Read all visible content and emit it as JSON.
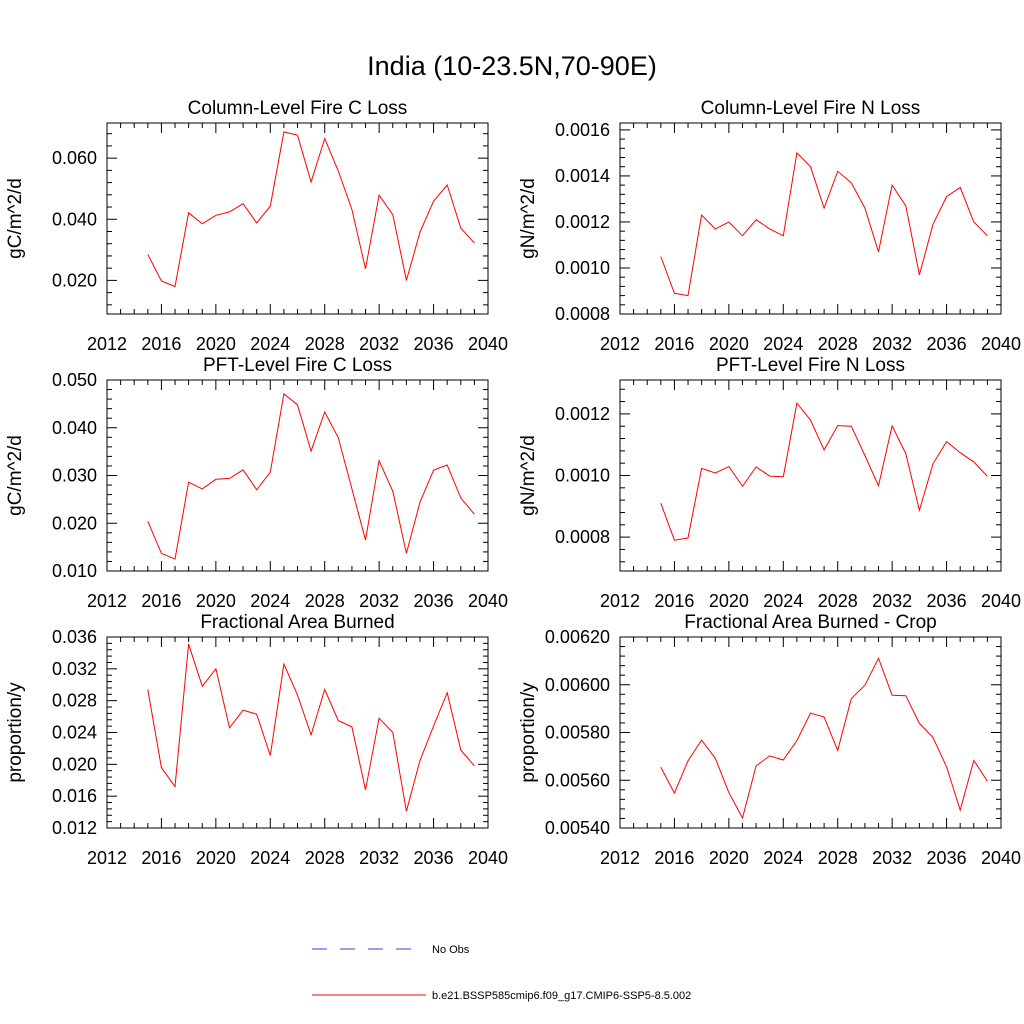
{
  "title": "India (10-23.5N,70-90E)",
  "legend": {
    "obs_label": "No Obs",
    "obs_color": "#3b3bd6",
    "model_label": "b.e21.BSSP585cmip6.f09_g17.CMIP6-SSP5-8.5.002",
    "model_color": "#ff0000"
  },
  "chart_data": [
    {
      "type": "line",
      "title": "Column-Level Fire C Loss",
      "ylabel": "gC/m^2/d",
      "xlim": [
        2012,
        2040
      ],
      "ylim": [
        0.009,
        0.0715
      ],
      "xticks": [
        "2012",
        "2016",
        "2020",
        "2024",
        "2028",
        "2032",
        "2036",
        "2040"
      ],
      "yticks": [
        {
          "v": 0.02,
          "label": "0.020"
        },
        {
          "v": 0.04,
          "label": "0.040"
        },
        {
          "v": 0.06,
          "label": "0.060"
        }
      ],
      "grid": false,
      "x": [
        2015,
        2016,
        2017,
        2018,
        2019,
        2020,
        2021,
        2022,
        2023,
        2024,
        2025,
        2026,
        2027,
        2028,
        2029,
        2030,
        2031,
        2032,
        2033,
        2034,
        2035,
        2036,
        2037,
        2038,
        2039
      ],
      "series": [
        {
          "values": [
            0.0285,
            0.0198,
            0.018,
            0.0421,
            0.0385,
            0.0413,
            0.0424,
            0.0451,
            0.0388,
            0.0443,
            0.0686,
            0.0675,
            0.0522,
            0.0664,
            0.0558,
            0.0432,
            0.0238,
            0.0479,
            0.0415,
            0.02,
            0.0358,
            0.0459,
            0.0512,
            0.0371,
            0.0322
          ]
        }
      ]
    },
    {
      "type": "line",
      "title": "Column-Level Fire N Loss",
      "ylabel": "gN/m^2/d",
      "xlim": [
        2012,
        2040
      ],
      "ylim": [
        0.0008,
        0.00163
      ],
      "xticks": [
        "2012",
        "2016",
        "2020",
        "2024",
        "2028",
        "2032",
        "2036",
        "2040"
      ],
      "yticks": [
        {
          "v": 0.0008,
          "label": "0.0008"
        },
        {
          "v": 0.001,
          "label": "0.0010"
        },
        {
          "v": 0.0012,
          "label": "0.0012"
        },
        {
          "v": 0.0014,
          "label": "0.0014"
        },
        {
          "v": 0.0016,
          "label": "0.0016"
        }
      ],
      "grid": false,
      "x": [
        2015,
        2016,
        2017,
        2018,
        2019,
        2020,
        2021,
        2022,
        2023,
        2024,
        2025,
        2026,
        2027,
        2028,
        2029,
        2030,
        2031,
        2032,
        2033,
        2034,
        2035,
        2036,
        2037,
        2038,
        2039
      ],
      "series": [
        {
          "values": [
            0.00105,
            0.00089,
            0.00088,
            0.00123,
            0.00117,
            0.0012,
            0.00114,
            0.00121,
            0.00117,
            0.00114,
            0.0015,
            0.00144,
            0.00126,
            0.00142,
            0.00137,
            0.00126,
            0.00107,
            0.00136,
            0.00127,
            0.00097,
            0.00119,
            0.00131,
            0.00135,
            0.0012,
            0.00114
          ]
        }
      ]
    },
    {
      "type": "line",
      "title": "PFT-Level Fire C Loss",
      "ylabel": "gC/m^2/d",
      "xlim": [
        2012,
        2040
      ],
      "ylim": [
        0.01,
        0.05
      ],
      "xticks": [
        "2012",
        "2016",
        "2020",
        "2024",
        "2028",
        "2032",
        "2036",
        "2040"
      ],
      "yticks": [
        {
          "v": 0.01,
          "label": "0.010"
        },
        {
          "v": 0.02,
          "label": "0.020"
        },
        {
          "v": 0.03,
          "label": "0.030"
        },
        {
          "v": 0.04,
          "label": "0.040"
        },
        {
          "v": 0.05,
          "label": "0.050"
        }
      ],
      "grid": false,
      "x": [
        2015,
        2016,
        2017,
        2018,
        2019,
        2020,
        2021,
        2022,
        2023,
        2024,
        2025,
        2026,
        2027,
        2028,
        2029,
        2030,
        2031,
        2032,
        2033,
        2034,
        2035,
        2036,
        2037,
        2038,
        2039
      ],
      "series": [
        {
          "values": [
            0.0204,
            0.0137,
            0.0125,
            0.0286,
            0.0272,
            0.0292,
            0.0294,
            0.0312,
            0.027,
            0.0307,
            0.0471,
            0.0448,
            0.0351,
            0.0433,
            0.0379,
            0.0272,
            0.0165,
            0.0331,
            0.0267,
            0.0137,
            0.0244,
            0.0311,
            0.0322,
            0.0253,
            0.0219
          ]
        }
      ]
    },
    {
      "type": "line",
      "title": "PFT-Level Fire N Loss",
      "ylabel": "gN/m^2/d",
      "xlim": [
        2012,
        2040
      ],
      "ylim": [
        0.00069,
        0.00131
      ],
      "xticks": [
        "2012",
        "2016",
        "2020",
        "2024",
        "2028",
        "2032",
        "2036",
        "2040"
      ],
      "yticks": [
        {
          "v": 0.0008,
          "label": "0.0008"
        },
        {
          "v": 0.001,
          "label": "0.0010"
        },
        {
          "v": 0.0012,
          "label": "0.0012"
        }
      ],
      "grid": false,
      "x": [
        2015,
        2016,
        2017,
        2018,
        2019,
        2020,
        2021,
        2022,
        2023,
        2024,
        2025,
        2026,
        2027,
        2028,
        2029,
        2030,
        2031,
        2032,
        2033,
        2034,
        2035,
        2036,
        2037,
        2038,
        2039
      ],
      "series": [
        {
          "values": [
            0.00091,
            0.00079,
            0.000797,
            0.001023,
            0.001008,
            0.001029,
            0.000965,
            0.001028,
            0.000998,
            0.000996,
            0.001235,
            0.00118,
            0.001083,
            0.001162,
            0.00116,
            0.001065,
            0.000967,
            0.001161,
            0.001071,
            0.000887,
            0.001038,
            0.00111,
            0.001074,
            0.001044,
            0.000997
          ]
        }
      ]
    },
    {
      "type": "line",
      "title": "Fractional Area Burned",
      "ylabel": "proportion/y",
      "xlim": [
        2012,
        2040
      ],
      "ylim": [
        0.012,
        0.036
      ],
      "xticks": [
        "2012",
        "2016",
        "2020",
        "2024",
        "2028",
        "2032",
        "2036",
        "2040"
      ],
      "yticks": [
        {
          "v": 0.012,
          "label": "0.012"
        },
        {
          "v": 0.016,
          "label": "0.016"
        },
        {
          "v": 0.02,
          "label": "0.020"
        },
        {
          "v": 0.024,
          "label": "0.024"
        },
        {
          "v": 0.028,
          "label": "0.028"
        },
        {
          "v": 0.032,
          "label": "0.032"
        },
        {
          "v": 0.036,
          "label": "0.036"
        }
      ],
      "grid": false,
      "x": [
        2015,
        2016,
        2017,
        2018,
        2019,
        2020,
        2021,
        2022,
        2023,
        2024,
        2025,
        2026,
        2027,
        2028,
        2029,
        2030,
        2031,
        2032,
        2033,
        2034,
        2035,
        2036,
        2037,
        2038,
        2039
      ],
      "series": [
        {
          "values": [
            0.0294,
            0.0196,
            0.0172,
            0.0351,
            0.0298,
            0.032,
            0.0246,
            0.0268,
            0.0263,
            0.0211,
            0.0326,
            0.0287,
            0.0237,
            0.0294,
            0.0255,
            0.0247,
            0.0168,
            0.0258,
            0.024,
            0.0141,
            0.0205,
            0.0248,
            0.029,
            0.0218,
            0.0198
          ]
        }
      ]
    },
    {
      "type": "line",
      "title": "Fractional Area Burned - Crop",
      "ylabel": "proportion/y",
      "xlim": [
        2012,
        2040
      ],
      "ylim": [
        0.0054,
        0.0062
      ],
      "xticks": [
        "2012",
        "2016",
        "2020",
        "2024",
        "2028",
        "2032",
        "2036",
        "2040"
      ],
      "yticks": [
        {
          "v": 0.0054,
          "label": "0.00540"
        },
        {
          "v": 0.0056,
          "label": "0.00560"
        },
        {
          "v": 0.0058,
          "label": "0.00580"
        },
        {
          "v": 0.006,
          "label": "0.00600"
        },
        {
          "v": 0.0062,
          "label": "0.00620"
        }
      ],
      "grid": false,
      "x": [
        2015,
        2016,
        2017,
        2018,
        2019,
        2020,
        2021,
        2022,
        2023,
        2024,
        2025,
        2026,
        2027,
        2028,
        2029,
        2030,
        2031,
        2032,
        2033,
        2034,
        2035,
        2036,
        2037,
        2038,
        2039
      ],
      "series": [
        {
          "values": [
            0.005655,
            0.005546,
            0.005681,
            0.005768,
            0.005692,
            0.005548,
            0.005442,
            0.00566,
            0.005702,
            0.005685,
            0.005766,
            0.005881,
            0.005865,
            0.005725,
            0.005942,
            0.005998,
            0.006111,
            0.005956,
            0.005954,
            0.005838,
            0.005779,
            0.005656,
            0.005475,
            0.005683,
            0.005596
          ]
        }
      ]
    }
  ]
}
